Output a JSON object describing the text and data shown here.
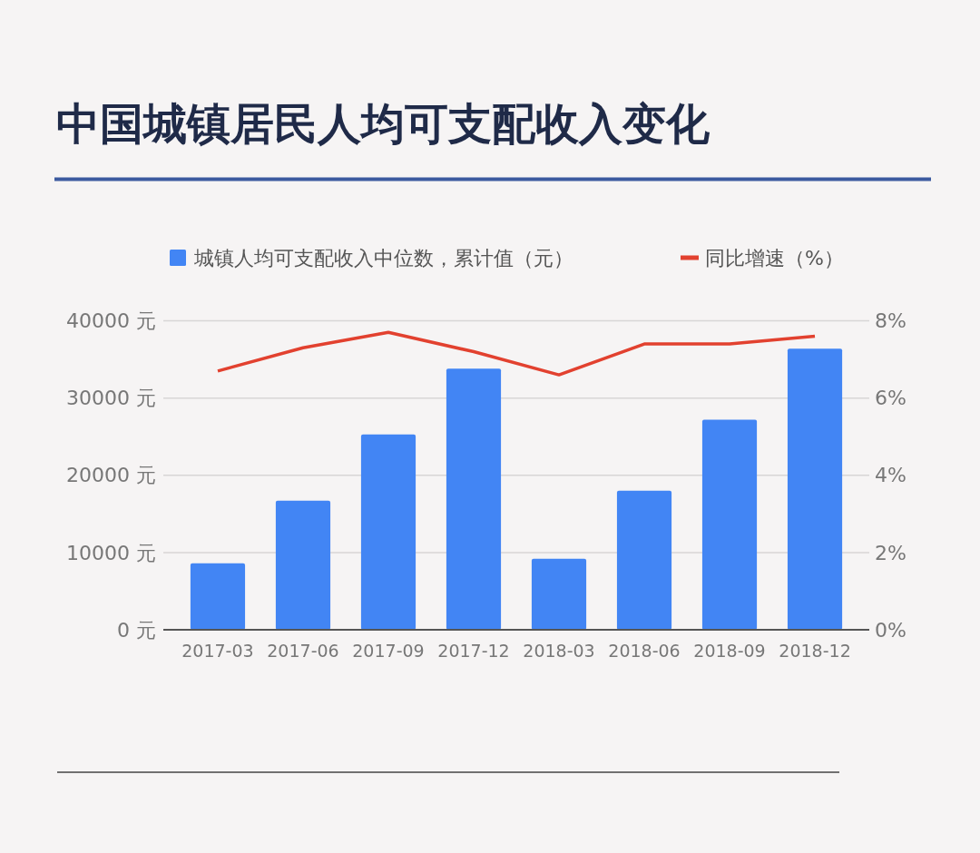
{
  "chart_data": {
    "type": "bar",
    "title": "中国城镇居民人均可支配收入变化",
    "categories": [
      "2017-03",
      "2017-06",
      "2017-09",
      "2017-12",
      "2018-03",
      "2018-06",
      "2018-09",
      "2018-12"
    ],
    "series": [
      {
        "name": "城镇人均可支配收入中位数，累计值（元）",
        "color": "#4285f4",
        "values": [
          8600,
          16700,
          25300,
          33800,
          9200,
          18000,
          27200,
          36400
        ]
      },
      {
        "name": "同比增速（%）",
        "type": "line",
        "axis": "y2",
        "color": "#e2412f",
        "values": [
          6.7,
          7.3,
          7.7,
          7.2,
          6.6,
          7.4,
          7.4,
          7.6
        ]
      }
    ],
    "ylim": [
      0,
      40000
    ],
    "yticks": [
      {
        "value": 0,
        "label": "0 元"
      },
      {
        "value": 10000,
        "label": "10000 元"
      },
      {
        "value": 20000,
        "label": "20000 元"
      },
      {
        "value": 30000,
        "label": "30000 元"
      },
      {
        "value": 40000,
        "label": "40000 元"
      }
    ],
    "y2lim": [
      0,
      8
    ],
    "y2ticks": [
      {
        "value": 0,
        "label": "0%"
      },
      {
        "value": 2,
        "label": "2%"
      },
      {
        "value": 4,
        "label": "4%"
      },
      {
        "value": 6,
        "label": "6%"
      },
      {
        "value": 8,
        "label": "8%"
      }
    ],
    "grid": "y",
    "legend": "top"
  }
}
